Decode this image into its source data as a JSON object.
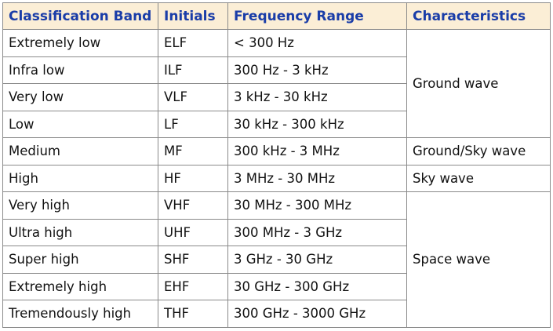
{
  "table": {
    "headers": [
      "Classification Band",
      "Initials",
      "Frequency Range",
      "Characteristics"
    ],
    "rows": [
      {
        "band": "Extremely low",
        "initials": "ELF",
        "range": "< 300 Hz"
      },
      {
        "band": "Infra low",
        "initials": "ILF",
        "range": "300 Hz - 3 kHz"
      },
      {
        "band": "Very low",
        "initials": "VLF",
        "range": "3 kHz - 30 kHz"
      },
      {
        "band": "Low",
        "initials": "LF",
        "range": "30 kHz - 300 kHz"
      },
      {
        "band": "Medium",
        "initials": "MF",
        "range": "300 kHz - 3 MHz"
      },
      {
        "band": "High",
        "initials": "HF",
        "range": "3 MHz - 30 MHz"
      },
      {
        "band": "Very high",
        "initials": "VHF",
        "range": "30 MHz - 300 MHz"
      },
      {
        "band": "Ultra high",
        "initials": "UHF",
        "range": "300 MHz - 3 GHz"
      },
      {
        "band": "Super high",
        "initials": "SHF",
        "range": "3 GHz - 30 GHz"
      },
      {
        "band": "Extremely high",
        "initials": "EHF",
        "range": "30 GHz - 300 GHz"
      },
      {
        "band": "Tremendously high",
        "initials": "THF",
        "range": "300 GHz - 3000 GHz"
      }
    ],
    "characteristics": [
      "Ground wave",
      "Ground/Sky wave",
      "Sky wave",
      "Space wave"
    ]
  },
  "colors": {
    "header_background": "#fbeed6",
    "header_text": "#1a3da8",
    "border": "#8a8a8a"
  }
}
